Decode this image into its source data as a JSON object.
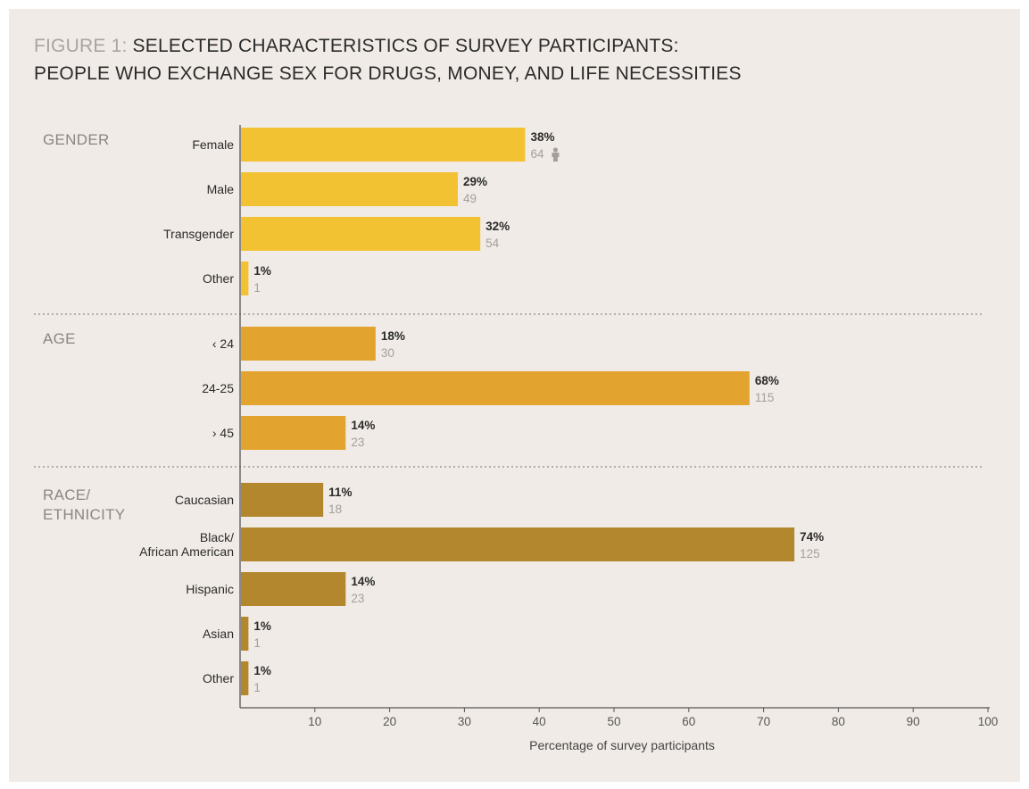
{
  "figure": {
    "prefix": "FIGURE 1: ",
    "title_line1": "SELECTED CHARACTERISTICS OF SURVEY PARTICIPANTS:",
    "title_line2": "PEOPLE WHO EXCHANGE SEX FOR DRUGS, MONEY, AND LIFE NECESSITIES"
  },
  "chart_data": {
    "type": "bar",
    "orientation": "horizontal",
    "xlabel": "Percentage of survey participants",
    "xlim": [
      0,
      100
    ],
    "xticks": [
      10,
      20,
      30,
      40,
      50,
      60,
      70,
      80,
      90,
      100
    ],
    "groups": [
      {
        "name": "GENDER",
        "name_lines": [
          "GENDER"
        ],
        "color": "#f3c232",
        "bars": [
          {
            "label_lines": [
              "Female"
            ],
            "value": 38,
            "value_label": "38%",
            "count": "64"
          },
          {
            "label_lines": [
              "Male"
            ],
            "value": 29,
            "value_label": "29%",
            "count": "49"
          },
          {
            "label_lines": [
              "Transgender"
            ],
            "value": 32,
            "value_label": "32%",
            "count": "54"
          },
          {
            "label_lines": [
              "Other"
            ],
            "value": 1,
            "value_label": "1%",
            "count": "1"
          }
        ]
      },
      {
        "name": "AGE",
        "name_lines": [
          "AGE"
        ],
        "color": "#e3a42f",
        "bars": [
          {
            "label_lines": [
              "‹ 24"
            ],
            "value": 18,
            "value_label": "18%",
            "count": "30"
          },
          {
            "label_lines": [
              "24-25"
            ],
            "value": 68,
            "value_label": "68%",
            "count": "115"
          },
          {
            "label_lines": [
              "› 45"
            ],
            "value": 14,
            "value_label": "14%",
            "count": "23"
          }
        ]
      },
      {
        "name": "RACE/ ETHNICITY",
        "name_lines": [
          "RACE/",
          "ETHNICITY"
        ],
        "color": "#b3872e",
        "bars": [
          {
            "label_lines": [
              "Caucasian"
            ],
            "value": 11,
            "value_label": "11%",
            "count": "18"
          },
          {
            "label_lines": [
              "Black/",
              "African American"
            ],
            "value": 74,
            "value_label": "74%",
            "count": "125"
          },
          {
            "label_lines": [
              "Hispanic"
            ],
            "value": 14,
            "value_label": "14%",
            "count": "23"
          },
          {
            "label_lines": [
              "Asian"
            ],
            "value": 1,
            "value_label": "1%",
            "count": "1"
          },
          {
            "label_lines": [
              "Other"
            ],
            "value": 1,
            "value_label": "1%",
            "count": "1"
          }
        ]
      }
    ],
    "person_icon": "person-icon",
    "colors": {
      "gender": "#f3c232",
      "age": "#e3a42f",
      "race": "#b3872e",
      "axis": "#555555",
      "divider": "#9e9a94"
    }
  }
}
